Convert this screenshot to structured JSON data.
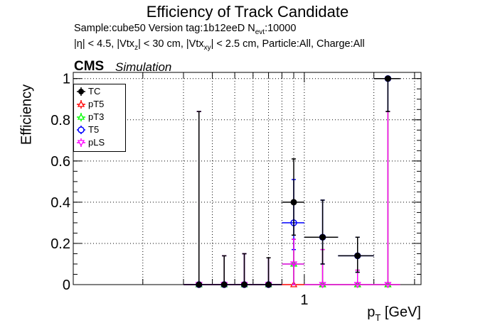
{
  "header": {
    "title": "Efficiency of Track Candidate",
    "sample_line": "Sample:cube50   Version tag:1b12eeD  N",
    "nevt_sub": "evt",
    "nevt_value": ":10000",
    "cuts_line": "|η| < 4.5, |Vtx",
    "cms": "CMS",
    "simulation": "Simulation"
  },
  "chart_data": {
    "type": "scatter",
    "title": "Efficiency of Track Candidate",
    "xlabel": "p_T [GeV]",
    "ylabel": "Efficiency",
    "xscale": "log",
    "xlim": [
      0.1,
      3.2
    ],
    "ylim": [
      0,
      1.03
    ],
    "x_ticks": [
      {
        "value": 1,
        "label": "1"
      }
    ],
    "y_ticks": [
      {
        "value": 0,
        "label": "0"
      },
      {
        "value": 0.2,
        "label": "0.2"
      },
      {
        "value": 0.4,
        "label": "0.4"
      },
      {
        "value": 0.6,
        "label": "0.6"
      },
      {
        "value": 0.8,
        "label": "0.8"
      },
      {
        "value": 1,
        "label": "1"
      }
    ],
    "grid": true,
    "legend_position": "top-left",
    "bins": [
      {
        "lo": 0.3,
        "hi": 0.4,
        "center": 0.35
      },
      {
        "lo": 0.4,
        "hi": 0.5,
        "center": 0.45
      },
      {
        "lo": 0.5,
        "hi": 0.6,
        "center": 0.55
      },
      {
        "lo": 0.6,
        "hi": 0.8,
        "center": 0.7
      },
      {
        "lo": 0.8,
        "hi": 1.0,
        "center": 0.9
      },
      {
        "lo": 1.0,
        "hi": 1.4,
        "center": 1.2
      },
      {
        "lo": 1.4,
        "hi": 2.0,
        "center": 1.7
      },
      {
        "lo": 2.0,
        "hi": 2.6,
        "center": 2.3
      }
    ],
    "series": [
      {
        "name": "TC",
        "color": "#000000",
        "marker": "filled-circle",
        "values": [
          0,
          0,
          0,
          0,
          0.4,
          0.23,
          0.14,
          1.0
        ],
        "err_up": [
          0.84,
          0.14,
          0.15,
          0.13,
          0.21,
          0.18,
          0.09,
          0.0
        ],
        "err_down": [
          0,
          0,
          0,
          0,
          0.16,
          0.13,
          0.08,
          0.16
        ]
      },
      {
        "name": "pT5",
        "color": "#ff0000",
        "marker": "open-triangle",
        "values": [
          0,
          0,
          0,
          0,
          0,
          0,
          0,
          0
        ],
        "err_up": [
          0.84,
          0.14,
          0.15,
          0.13,
          0.22,
          0.17,
          0.07,
          0.84
        ],
        "err_down": [
          0,
          0,
          0,
          0,
          0,
          0,
          0,
          0
        ]
      },
      {
        "name": "pT3",
        "color": "#00ff00",
        "marker": "open-triangle",
        "values": [
          0,
          0,
          0,
          0,
          0.1,
          0,
          0,
          0
        ],
        "err_up": [
          0.84,
          0.14,
          0.15,
          0.13,
          0.12,
          0.17,
          0.07,
          0.84
        ],
        "err_down": [
          0,
          0,
          0,
          0,
          0.1,
          0,
          0,
          0
        ]
      },
      {
        "name": "T5",
        "color": "#0000ff",
        "marker": "open-circle",
        "values": [
          0,
          0,
          0,
          0,
          0.3,
          0.23,
          0.14,
          1.0
        ],
        "err_up": [
          0.84,
          0.14,
          0.15,
          0.13,
          0.21,
          0.18,
          0.09,
          0.0
        ],
        "err_down": [
          0,
          0,
          0,
          0,
          0.13,
          0.13,
          0.08,
          0.16
        ]
      },
      {
        "name": "pLS",
        "color": "#ff00ff",
        "marker": "open-triangle-down",
        "values": [
          0,
          0,
          0,
          0,
          0.1,
          0,
          0,
          0
        ],
        "err_up": [
          0.84,
          0.14,
          0.15,
          0.13,
          0.12,
          0.17,
          0.07,
          0.84
        ],
        "err_down": [
          0,
          0,
          0,
          0,
          0.1,
          0,
          0,
          0
        ]
      }
    ]
  }
}
